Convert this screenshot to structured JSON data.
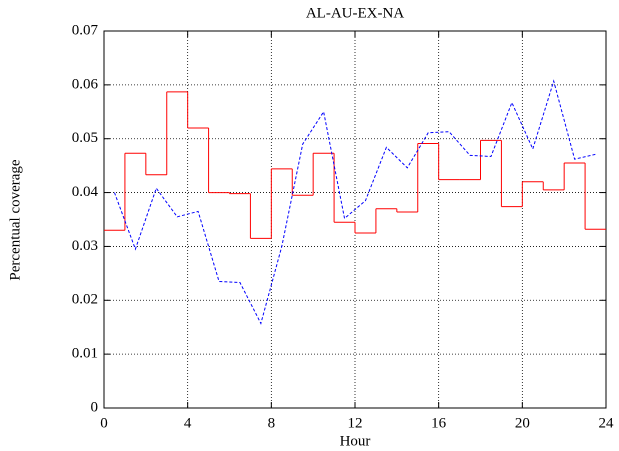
{
  "chart_data": {
    "type": "line",
    "title": "AL-AU-EX-NA",
    "xlabel": "Hour",
    "ylabel": "Percentual coverage",
    "xlim": [
      0,
      24
    ],
    "xticks": [
      0,
      4,
      8,
      12,
      16,
      20,
      24
    ],
    "ylim": [
      0,
      0.07
    ],
    "yticks": [
      0,
      0.01,
      0.02,
      0.03,
      0.04,
      0.05,
      0.06,
      0.07
    ],
    "grid": true,
    "series": [
      {
        "color": "#ff0000",
        "step": "post",
        "dash": false,
        "x": [
          0,
          1,
          2,
          3,
          4,
          5,
          6,
          7,
          8,
          9,
          10,
          11,
          12,
          13,
          14,
          15,
          16,
          17,
          18,
          19,
          20,
          21,
          22,
          23
        ],
        "values": [
          0.033,
          0.0473,
          0.0433,
          0.0587,
          0.052,
          0.04,
          0.0398,
          0.0315,
          0.0444,
          0.0395,
          0.0473,
          0.0345,
          0.0325,
          0.037,
          0.0364,
          0.0491,
          0.0424,
          0.0424,
          0.0497,
          0.0374,
          0.042,
          0.0405,
          0.0455,
          0.0332
        ]
      },
      {
        "color": "#0000ff",
        "dash": true,
        "x": [
          0.5,
          1.5,
          2.5,
          3.5,
          4.5,
          5.5,
          6.5,
          7.5,
          8.5,
          9.5,
          10.5,
          11.5,
          12.5,
          13.5,
          14.5,
          15.5,
          16.5,
          17.5,
          18.5,
          19.5,
          20.5,
          21.5,
          22.5,
          23.5
        ],
        "values": [
          0.04,
          0.0295,
          0.0408,
          0.0355,
          0.0365,
          0.0235,
          0.0233,
          0.0157,
          0.03,
          0.049,
          0.055,
          0.0352,
          0.0385,
          0.0484,
          0.0446,
          0.0511,
          0.0513,
          0.0469,
          0.0467,
          0.0567,
          0.0481,
          0.0607,
          0.0462,
          0.0471
        ]
      }
    ]
  }
}
